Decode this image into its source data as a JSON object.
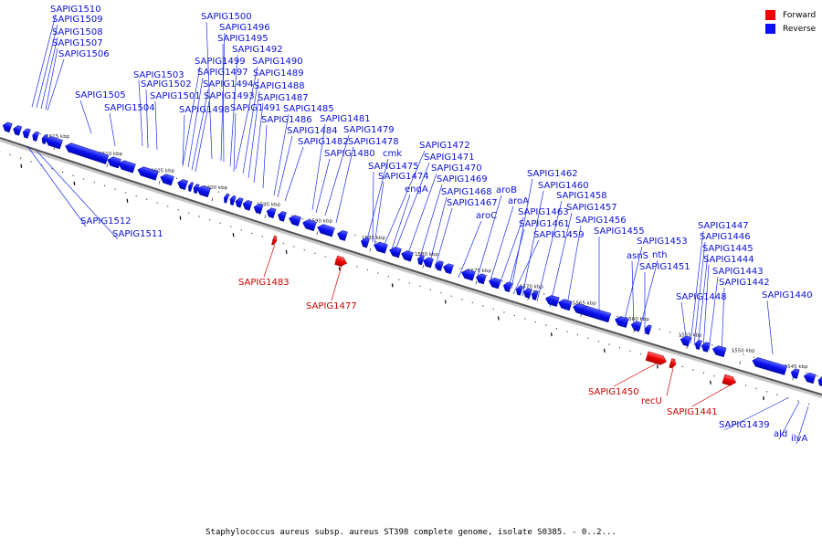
{
  "legend": {
    "forward_label": "Forward",
    "forward_color": "#ee0000",
    "reverse_label": "Reverse",
    "reverse_color": "#0a10f0"
  },
  "caption": "Staphylococcus aureus subsp. aureus ST398 complete genome, isolate S0385. - 0..2...",
  "tick_labels": [
    "1615 kbp",
    "1610 kbp",
    "1605 kbp",
    "1600 kbp",
    "1595 kbp",
    "1590 kbp",
    "1585 kbp",
    "1580 kbp",
    "1575 kbp",
    "1570 kbp",
    "1565 kbp",
    "1560 kbp",
    "1555 kbp",
    "1550 kbp",
    "1545 kbp"
  ],
  "reverse_genes": [
    {
      "name": "SAPIG1510"
    },
    {
      "name": "SAPIG1509"
    },
    {
      "name": "SAPIG1508"
    },
    {
      "name": "SAPIG1507"
    },
    {
      "name": "SAPIG1506"
    },
    {
      "name": "SAPIG1505"
    },
    {
      "name": "SAPIG1504"
    },
    {
      "name": "SAPIG1503"
    },
    {
      "name": "SAPIG1502"
    },
    {
      "name": "SAPIG1501"
    },
    {
      "name": "SAPIG1500"
    },
    {
      "name": "SAPIG1496"
    },
    {
      "name": "SAPIG1495"
    },
    {
      "name": "SAPIG1492"
    },
    {
      "name": "SAPIG1499"
    },
    {
      "name": "SAPIG1490"
    },
    {
      "name": "SAPIG1497"
    },
    {
      "name": "SAPIG1489"
    },
    {
      "name": "SAPIG1494"
    },
    {
      "name": "SAPIG1488"
    },
    {
      "name": "SAPIG1493"
    },
    {
      "name": "SAPIG1487"
    },
    {
      "name": "SAPIG1498"
    },
    {
      "name": "SAPIG1491"
    },
    {
      "name": "SAPIG1485"
    },
    {
      "name": "SAPIG1486"
    },
    {
      "name": "SAPIG1481"
    },
    {
      "name": "SAPIG1484"
    },
    {
      "name": "SAPIG1479"
    },
    {
      "name": "SAPIG1482"
    },
    {
      "name": "SAPIG1478"
    },
    {
      "name": "SAPIG1480"
    },
    {
      "name": "SAPIG1472"
    },
    {
      "name": "cmk"
    },
    {
      "name": "SAPIG1471"
    },
    {
      "name": "SAPIG1475"
    },
    {
      "name": "SAPIG1470"
    },
    {
      "name": "SAPIG1474"
    },
    {
      "name": "SAPIG1469"
    },
    {
      "name": "engA"
    },
    {
      "name": "SAPIG1468"
    },
    {
      "name": "SAPIG1467"
    },
    {
      "name": "aroC"
    },
    {
      "name": "SAPIG1462"
    },
    {
      "name": "aroB"
    },
    {
      "name": "SAPIG1460"
    },
    {
      "name": "aroA"
    },
    {
      "name": "SAPIG1458"
    },
    {
      "name": "SAPIG1463"
    },
    {
      "name": "SAPIG1457"
    },
    {
      "name": "SAPIG1461"
    },
    {
      "name": "SAPIG1456"
    },
    {
      "name": "SAPIG1459"
    },
    {
      "name": "SAPIG1455"
    },
    {
      "name": "SAPIG1453"
    },
    {
      "name": "asnS"
    },
    {
      "name": "nth"
    },
    {
      "name": "SAPIG1451"
    },
    {
      "name": "SAPIG1447"
    },
    {
      "name": "SAPIG1446"
    },
    {
      "name": "SAPIG1445"
    },
    {
      "name": "SAPIG1444"
    },
    {
      "name": "SAPIG1443"
    },
    {
      "name": "SAPIG1442"
    },
    {
      "name": "SAPIG1448"
    },
    {
      "name": "SAPIG1440"
    },
    {
      "name": "SAPIG1512"
    },
    {
      "name": "SAPIG1511"
    },
    {
      "name": "SAPIG1439"
    },
    {
      "name": "ald"
    },
    {
      "name": "ilvA"
    }
  ],
  "forward_genes": [
    {
      "name": "SAPIG1483"
    },
    {
      "name": "SAPIG1477"
    },
    {
      "name": "SAPIG1450"
    },
    {
      "name": "recU"
    },
    {
      "name": "SAPIG1441"
    }
  ]
}
